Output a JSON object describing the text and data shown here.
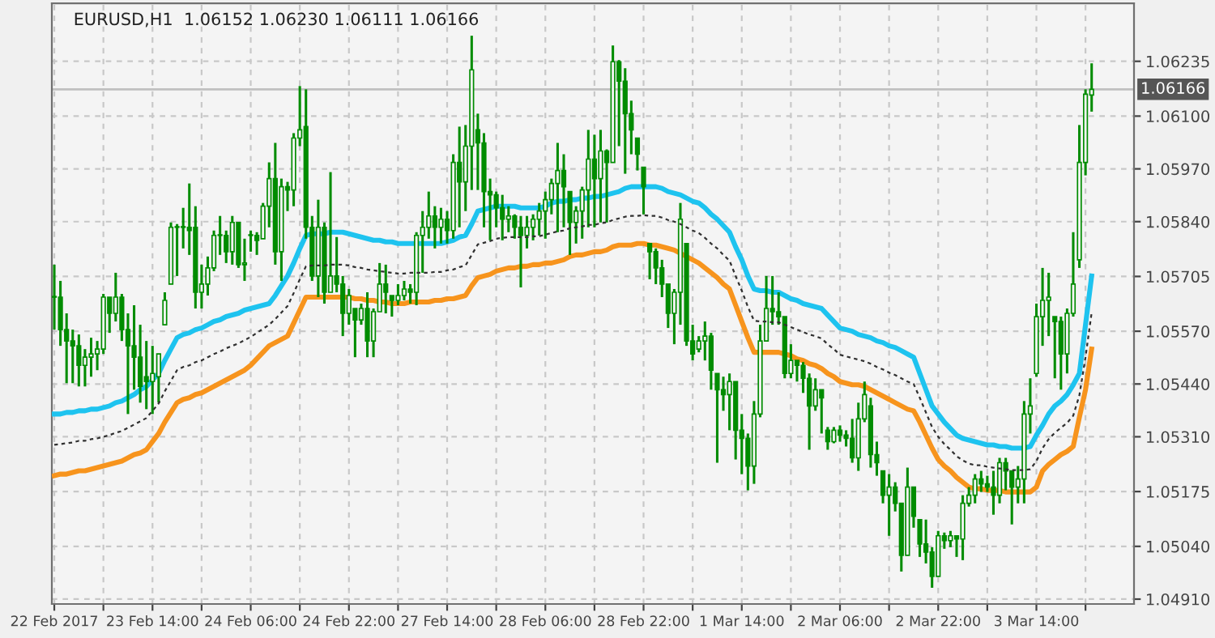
{
  "chart_data": {
    "type": "candlestick",
    "title": "EURUSD,H1  1.06152 1.06230 1.06111 1.06166",
    "categories": [
      "22 Feb 2017",
      null,
      null,
      null,
      null,
      null,
      null,
      null,
      null,
      null,
      null,
      null,
      null,
      null,
      null,
      null,
      "23 Feb 14:00",
      null,
      null,
      null,
      null,
      null,
      null,
      null,
      null,
      null,
      null,
      null,
      null,
      null,
      null,
      null,
      "24 Feb 06:00",
      null,
      null,
      null,
      null,
      null,
      null,
      null,
      null,
      null,
      null,
      null,
      null,
      null,
      null,
      null,
      "24 Feb 22:00",
      null,
      null,
      null,
      null,
      null,
      null,
      null,
      null,
      null,
      null,
      null,
      null,
      null,
      null,
      null,
      "27 Feb 14:00",
      null,
      null,
      null,
      null,
      null,
      null,
      null,
      null,
      null,
      null,
      null,
      null,
      null,
      null,
      null,
      "28 Feb 06:00",
      null,
      null,
      null,
      null,
      null,
      null,
      null,
      null,
      null,
      null,
      null,
      null,
      null,
      null,
      null,
      "28 Feb 22:00",
      null,
      null,
      null,
      null,
      null,
      null,
      null,
      null,
      null,
      null,
      null,
      null,
      null,
      null,
      null,
      "1 Mar 14:00",
      null,
      null,
      null,
      null,
      null,
      null,
      null,
      null,
      null,
      null,
      null,
      null,
      null,
      null,
      null,
      "2 Mar 06:00",
      null,
      null,
      null,
      null,
      null,
      null,
      null,
      null,
      null,
      null,
      null,
      null,
      null,
      null,
      null,
      "2 Mar 22:00",
      null,
      null,
      null,
      null,
      null,
      null,
      null,
      null,
      null,
      null,
      null,
      null,
      null,
      null,
      null,
      "3 Mar 14:00",
      null,
      null,
      null,
      null,
      null,
      null,
      null,
      null,
      null
    ],
    "color": "#008c00",
    "ohlc": [
      [
        1.05654,
        1.05734,
        1.05574,
        1.05654
      ],
      [
        1.05654,
        1.05694,
        1.05534,
        1.05574
      ],
      [
        1.05574,
        1.05614,
        1.05442,
        1.05546
      ],
      [
        1.05546,
        1.05574,
        1.05442,
        1.05534
      ],
      [
        1.05534,
        1.05562,
        1.05434,
        1.05486
      ],
      [
        1.05486,
        1.05526,
        1.05434,
        1.05506
      ],
      [
        1.05506,
        1.05554,
        1.05458,
        1.05514
      ],
      [
        1.05514,
        1.05546,
        1.05474,
        1.05526
      ],
      [
        1.05526,
        1.05662,
        1.05514,
        1.05654
      ],
      [
        1.05654,
        1.05654,
        1.05566,
        1.05614
      ],
      [
        1.05614,
        1.05714,
        1.05594,
        1.05654
      ],
      [
        1.05654,
        1.05662,
        1.05546,
        1.05574
      ],
      [
        1.05574,
        1.05614,
        1.05366,
        1.05534
      ],
      [
        1.05534,
        1.05634,
        1.05426,
        1.05506
      ],
      [
        1.05506,
        1.05586,
        1.05394,
        1.05434
      ],
      [
        1.05458,
        1.05546,
        1.05378,
        1.05446
      ],
      [
        1.05446,
        1.05534,
        1.05366,
        1.05466
      ],
      [
        1.05458,
        1.05514,
        1.05394,
        1.05514
      ],
      [
        1.05586,
        1.05666,
        1.05586,
        1.05646
      ],
      [
        1.05686,
        1.05838,
        1.05686,
        1.05826
      ],
      [
        1.05826,
        1.05834,
        1.05706,
        1.05826
      ],
      [
        1.05826,
        1.05874,
        1.05774,
        1.05826
      ],
      [
        1.05826,
        1.05934,
        1.05758,
        1.05818
      ],
      [
        1.05826,
        1.05878,
        1.05626,
        1.05666
      ],
      [
        1.05666,
        1.05734,
        1.05626,
        1.05686
      ],
      [
        1.05686,
        1.05754,
        1.05658,
        1.05726
      ],
      [
        1.05726,
        1.05818,
        1.05718,
        1.05806
      ],
      [
        1.05806,
        1.05854,
        1.05758,
        1.05806
      ],
      [
        1.05806,
        1.05818,
        1.05738,
        1.05766
      ],
      [
        1.05766,
        1.05854,
        1.05734,
        1.05838
      ],
      [
        1.05838,
        1.05838,
        1.05726,
        1.05734
      ],
      [
        1.05734,
        1.05798,
        1.05694,
        1.05738
      ],
      [
        1.05806,
        1.05818,
        1.05766,
        1.05806
      ],
      [
        1.05806,
        1.05814,
        1.05758,
        1.05794
      ],
      [
        1.05798,
        1.05886,
        1.05798,
        1.05878
      ],
      [
        1.05878,
        1.05986,
        1.05826,
        1.05946
      ],
      [
        1.05946,
        1.06034,
        1.05734,
        1.05766
      ],
      [
        1.05766,
        1.05946,
        1.05694,
        1.05926
      ],
      [
        1.05926,
        1.05938,
        1.05866,
        1.05918
      ],
      [
        1.05918,
        1.06058,
        1.05878,
        1.06046
      ],
      [
        1.06046,
        1.06174,
        1.06026,
        1.06066
      ],
      [
        1.06074,
        1.06166,
        1.05798,
        1.05826
      ],
      [
        1.05826,
        1.05854,
        1.05694,
        1.05706
      ],
      [
        1.05706,
        1.05894,
        1.05654,
        1.05826
      ],
      [
        1.05826,
        1.05838,
        1.05638,
        1.05666
      ],
      [
        1.05666,
        1.05962,
        1.05666,
        1.05706
      ],
      [
        1.05706,
        1.05802,
        1.05666,
        1.05686
      ],
      [
        1.05686,
        1.05706,
        1.05558,
        1.05614
      ],
      [
        1.05614,
        1.05674,
        1.05586,
        1.05658
      ],
      [
        1.05626,
        1.05626,
        1.05506,
        1.05598
      ],
      [
        1.05598,
        1.05638,
        1.05586,
        1.05626
      ],
      [
        1.05626,
        1.05666,
        1.05506,
        1.05546
      ],
      [
        1.05546,
        1.05626,
        1.05506,
        1.05618
      ],
      [
        1.05618,
        1.05738,
        1.05618,
        1.05686
      ],
      [
        1.05686,
        1.05734,
        1.05614,
        1.05666
      ],
      [
        1.05658,
        1.05658,
        1.05606,
        1.05646
      ],
      [
        1.05646,
        1.05686,
        1.05634,
        1.05658
      ],
      [
        1.05658,
        1.05694,
        1.05646,
        1.05674
      ],
      [
        1.05674,
        1.05686,
        1.05638,
        1.05666
      ],
      [
        1.05666,
        1.05814,
        1.05634,
        1.05806
      ],
      [
        1.05806,
        1.05866,
        1.05714,
        1.05826
      ],
      [
        1.05826,
        1.05914,
        1.05798,
        1.05854
      ],
      [
        1.05854,
        1.05878,
        1.05774,
        1.05826
      ],
      [
        1.05826,
        1.05874,
        1.05786,
        1.05846
      ],
      [
        1.05846,
        1.05866,
        1.05786,
        1.05818
      ],
      [
        1.05818,
        1.06006,
        1.05798,
        1.05986
      ],
      [
        1.05986,
        1.06074,
        1.05826,
        1.05938
      ],
      [
        1.05938,
        1.06078,
        1.05866,
        1.06026
      ],
      [
        1.06026,
        1.06298,
        1.05918,
        1.06214
      ],
      [
        1.06066,
        1.06106,
        1.05918,
        1.06034
      ],
      [
        1.06034,
        1.06058,
        1.05826,
        1.05914
      ],
      [
        1.05914,
        1.05946,
        1.05794,
        1.05906
      ],
      [
        1.05906,
        1.05914,
        1.05826,
        1.05874
      ],
      [
        1.05874,
        1.05906,
        1.05794,
        1.05846
      ],
      [
        1.05846,
        1.05878,
        1.05814,
        1.05854
      ],
      [
        1.05854,
        1.05858,
        1.05798,
        1.05826
      ],
      [
        1.05826,
        1.05854,
        1.05678,
        1.05806
      ],
      [
        1.05806,
        1.05854,
        1.05774,
        1.05826
      ],
      [
        1.05826,
        1.05858,
        1.05794,
        1.05846
      ],
      [
        1.05846,
        1.05886,
        1.05806,
        1.05866
      ],
      [
        1.05866,
        1.05914,
        1.05798,
        1.05894
      ],
      [
        1.05894,
        1.05946,
        1.05858,
        1.05934
      ],
      [
        1.05934,
        1.06034,
        1.05814,
        1.05966
      ],
      [
        1.05966,
        1.06006,
        1.05826,
        1.05926
      ],
      [
        1.05914,
        1.05914,
        1.05758,
        1.05838
      ],
      [
        1.05838,
        1.05878,
        1.05786,
        1.05866
      ],
      [
        1.05866,
        1.05926,
        1.05798,
        1.05918
      ],
      [
        1.05918,
        1.06066,
        1.05826,
        1.05994
      ],
      [
        1.05994,
        1.06054,
        1.05826,
        1.05946
      ],
      [
        1.05946,
        1.06066,
        1.05838,
        1.06014
      ],
      [
        1.06014,
        1.06018,
        1.05838,
        1.05986
      ],
      [
        1.05986,
        1.06274,
        1.05986,
        1.06234
      ],
      [
        1.06234,
        1.06238,
        1.06026,
        1.06186
      ],
      [
        1.06186,
        1.06218,
        1.05958,
        1.06106
      ],
      [
        1.06106,
        1.06138,
        1.06006,
        1.06066
      ],
      [
        1.06046,
        1.06046,
        1.05966,
        1.06006
      ],
      [
        1.05974,
        1.05974,
        1.05858,
        1.05926
      ],
      [
        1.05786,
        1.05786,
        1.05698,
        1.05766
      ],
      [
        1.05766,
        1.05774,
        1.05686,
        1.05726
      ],
      [
        1.05726,
        1.05746,
        1.05654,
        1.05686
      ],
      [
        1.05686,
        1.05686,
        1.05578,
        1.05614
      ],
      [
        1.05614,
        1.05674,
        1.05538,
        1.05666
      ],
      [
        1.05666,
        1.05886,
        1.05586,
        1.05846
      ],
      [
        1.05786,
        1.05786,
        1.05534,
        1.05546
      ],
      [
        1.05546,
        1.05586,
        1.05498,
        1.05514
      ],
      [
        1.05526,
        1.05558,
        1.05518,
        1.05546
      ],
      [
        1.05546,
        1.05594,
        1.05498,
        1.05558
      ],
      [
        1.05558,
        1.05566,
        1.05426,
        1.05474
      ],
      [
        1.05466,
        1.05466,
        1.05246,
        1.05426
      ],
      [
        1.05426,
        1.05458,
        1.05374,
        1.05414
      ],
      [
        1.05414,
        1.05466,
        1.05326,
        1.05446
      ],
      [
        1.05446,
        1.05446,
        1.05254,
        1.05326
      ],
      [
        1.05326,
        1.05366,
        1.05218,
        1.05306
      ],
      [
        1.05306,
        1.05318,
        1.05178,
        1.05238
      ],
      [
        1.05238,
        1.05398,
        1.05194,
        1.05366
      ],
      [
        1.05366,
        1.05586,
        1.05358,
        1.05546
      ],
      [
        1.05546,
        1.05706,
        1.05546,
        1.05626
      ],
      [
        1.05626,
        1.05706,
        1.05586,
        1.05618
      ],
      [
        1.05618,
        1.05666,
        1.05586,
        1.05606
      ],
      [
        1.05606,
        1.05606,
        1.05454,
        1.05466
      ],
      [
        1.05466,
        1.05538,
        1.05454,
        1.05498
      ],
      [
        1.05498,
        1.05498,
        1.05446,
        1.05486
      ],
      [
        1.05486,
        1.05494,
        1.05418,
        1.05454
      ],
      [
        1.05454,
        1.05466,
        1.05278,
        1.05386
      ],
      [
        1.05386,
        1.05454,
        1.05374,
        1.05426
      ],
      [
        1.05426,
        1.05426,
        1.05318,
        1.05406
      ],
      [
        1.05326,
        1.05334,
        1.05278,
        1.05298
      ],
      [
        1.05298,
        1.05334,
        1.05294,
        1.05326
      ],
      [
        1.05326,
        1.05338,
        1.05298,
        1.05314
      ],
      [
        1.05314,
        1.05326,
        1.05286,
        1.05306
      ],
      [
        1.05306,
        1.05354,
        1.05246,
        1.05258
      ],
      [
        1.05258,
        1.05394,
        1.05226,
        1.05354
      ],
      [
        1.05354,
        1.05446,
        1.05346,
        1.05414
      ],
      [
        1.05386,
        1.05406,
        1.05234,
        1.05266
      ],
      [
        1.05266,
        1.05298,
        1.05214,
        1.05246
      ],
      [
        1.05226,
        1.05226,
        1.05146,
        1.05166
      ],
      [
        1.05166,
        1.05218,
        1.05066,
        1.05186
      ],
      [
        1.05186,
        1.05198,
        1.05126,
        1.05146
      ],
      [
        1.05146,
        1.05146,
        1.04978,
        1.05018
      ],
      [
        1.05018,
        1.05234,
        1.05018,
        1.05186
      ],
      [
        1.05186,
        1.05186,
        1.05086,
        1.05114
      ],
      [
        1.05106,
        1.05106,
        1.05014,
        1.05046
      ],
      [
        1.05046,
        1.05106,
        1.04998,
        1.05026
      ],
      [
        1.05026,
        1.05038,
        1.04938,
        1.04966
      ],
      [
        1.04966,
        1.05078,
        1.04966,
        1.05066
      ],
      [
        1.05066,
        1.05074,
        1.05034,
        1.05054
      ],
      [
        1.05054,
        1.05078,
        1.05038,
        1.05066
      ],
      [
        1.05066,
        1.05066,
        1.05014,
        1.05058
      ],
      [
        1.05058,
        1.05166,
        1.05006,
        1.05146
      ],
      [
        1.05146,
        1.05186,
        1.05138,
        1.05166
      ],
      [
        1.05166,
        1.05218,
        1.05146,
        1.05206
      ],
      [
        1.05206,
        1.05226,
        1.05174,
        1.05194
      ],
      [
        1.05194,
        1.05214,
        1.05174,
        1.05186
      ],
      [
        1.05186,
        1.05226,
        1.05118,
        1.05166
      ],
      [
        1.05166,
        1.05258,
        1.05146,
        1.05246
      ],
      [
        1.05246,
        1.05258,
        1.05178,
        1.05226
      ],
      [
        1.05226,
        1.05226,
        1.05094,
        1.05186
      ],
      [
        1.05186,
        1.05238,
        1.05146,
        1.05206
      ],
      [
        1.05206,
        1.05398,
        1.05146,
        1.05366
      ],
      [
        1.05366,
        1.05454,
        1.05318,
        1.05386
      ],
      [
        1.05466,
        1.05638,
        1.05458,
        1.05606
      ],
      [
        1.05606,
        1.05726,
        1.05534,
        1.05646
      ],
      [
        1.05646,
        1.05714,
        1.05558,
        1.05654
      ],
      [
        1.05606,
        1.05606,
        1.05454,
        1.05594
      ],
      [
        1.05594,
        1.05606,
        1.05426,
        1.05514
      ],
      [
        1.05514,
        1.05626,
        1.05466,
        1.05614
      ],
      [
        1.05614,
        1.05814,
        1.05606,
        1.05686
      ],
      [
        1.05746,
        1.06078,
        1.05726,
        1.05986
      ],
      [
        1.05986,
        1.06166,
        1.05954,
        1.06154
      ],
      [
        1.06152,
        1.0623,
        1.06111,
        1.06166
      ]
    ],
    "series": [
      {
        "type": "line",
        "color": "#1ec3ef",
        "line_style": "solid",
        "values": [
          1.05366,
          1.05366,
          1.0537,
          1.0537,
          1.05374,
          1.05374,
          1.05378,
          1.05378,
          1.05382,
          1.05386,
          1.05394,
          1.05398,
          1.05406,
          1.05414,
          1.05426,
          1.05434,
          1.0545,
          1.05466,
          1.05498,
          1.05526,
          1.05554,
          1.05562,
          1.05566,
          1.05574,
          1.05578,
          1.05586,
          1.05594,
          1.05598,
          1.05606,
          1.0561,
          1.05614,
          1.05622,
          1.05626,
          1.0563,
          1.05634,
          1.05638,
          1.05658,
          1.05682,
          1.05706,
          1.05738,
          1.05774,
          1.05806,
          1.0581,
          1.0581,
          1.0581,
          1.05814,
          1.05814,
          1.05814,
          1.0581,
          1.05806,
          1.05802,
          1.05798,
          1.05794,
          1.05794,
          1.0579,
          1.0579,
          1.05786,
          1.05786,
          1.05786,
          1.05786,
          1.05786,
          1.05786,
          1.05786,
          1.05786,
          1.0579,
          1.05794,
          1.05802,
          1.05806,
          1.05834,
          1.05866,
          1.0587,
          1.05874,
          1.05878,
          1.05878,
          1.05878,
          1.05878,
          1.05874,
          1.05874,
          1.05874,
          1.05874,
          1.05878,
          1.05886,
          1.0589,
          1.0589,
          1.05894,
          1.05894,
          1.05898,
          1.05898,
          1.05902,
          1.05902,
          1.05906,
          1.0591,
          1.05914,
          1.05922,
          1.05926,
          1.05926,
          1.05926,
          1.05926,
          1.05926,
          1.05922,
          1.05914,
          1.0591,
          1.05906,
          1.05898,
          1.0589,
          1.05886,
          1.05874,
          1.05858,
          1.05846,
          1.0583,
          1.05814,
          1.05778,
          1.05746,
          1.05706,
          1.05674,
          1.0567,
          1.0567,
          1.05666,
          1.05666,
          1.05658,
          1.0565,
          1.05646,
          1.05638,
          1.05634,
          1.0563,
          1.05626,
          1.0561,
          1.05594,
          1.05578,
          1.05574,
          1.0557,
          1.05562,
          1.05558,
          1.05554,
          1.05546,
          1.05542,
          1.05534,
          1.0553,
          1.05522,
          1.05514,
          1.05506,
          1.05466,
          1.05426,
          1.05386,
          1.05366,
          1.05346,
          1.0533,
          1.05314,
          1.05306,
          1.05302,
          1.05298,
          1.05294,
          1.0529,
          1.0529,
          1.05286,
          1.05286,
          1.05282,
          1.05282,
          1.05282,
          1.05286,
          1.05314,
          1.05338,
          1.05366,
          1.05386,
          1.05398,
          1.05414,
          1.05438,
          1.05466,
          1.05586,
          1.05706
        ]
      },
      {
        "type": "line",
        "color": "#f7941d",
        "line_style": "solid",
        "values": [
          1.05214,
          1.05218,
          1.05218,
          1.05222,
          1.05226,
          1.05226,
          1.0523,
          1.05234,
          1.05238,
          1.05242,
          1.05246,
          1.0525,
          1.05258,
          1.05266,
          1.0527,
          1.05278,
          1.05298,
          1.05318,
          1.05346,
          1.0537,
          1.05394,
          1.05402,
          1.05406,
          1.05414,
          1.05418,
          1.05426,
          1.05434,
          1.05442,
          1.0545,
          1.05458,
          1.05466,
          1.05474,
          1.05486,
          1.05502,
          1.05518,
          1.05534,
          1.05542,
          1.0555,
          1.05558,
          1.0559,
          1.05622,
          1.05654,
          1.05654,
          1.05654,
          1.05654,
          1.05654,
          1.05654,
          1.05654,
          1.05654,
          1.0565,
          1.0565,
          1.05646,
          1.05646,
          1.05642,
          1.05642,
          1.05638,
          1.05638,
          1.05638,
          1.05642,
          1.05642,
          1.05642,
          1.05642,
          1.05646,
          1.05646,
          1.0565,
          1.0565,
          1.05654,
          1.05658,
          1.05682,
          1.05702,
          1.05706,
          1.0571,
          1.05718,
          1.05722,
          1.05726,
          1.05726,
          1.0573,
          1.0573,
          1.05734,
          1.05734,
          1.05738,
          1.05738,
          1.05742,
          1.05746,
          1.05754,
          1.05758,
          1.05758,
          1.05762,
          1.05766,
          1.05766,
          1.0577,
          1.05778,
          1.05782,
          1.05782,
          1.05782,
          1.05786,
          1.05786,
          1.05782,
          1.05782,
          1.05778,
          1.05774,
          1.0577,
          1.05762,
          1.05754,
          1.05746,
          1.05738,
          1.05726,
          1.05714,
          1.05702,
          1.05686,
          1.05674,
          1.05634,
          1.05594,
          1.05554,
          1.05518,
          1.05518,
          1.05518,
          1.05518,
          1.05518,
          1.05514,
          1.0551,
          1.05502,
          1.05498,
          1.0549,
          1.05486,
          1.05478,
          1.05466,
          1.05458,
          1.05446,
          1.05442,
          1.05438,
          1.05438,
          1.05434,
          1.05426,
          1.05418,
          1.0541,
          1.05402,
          1.05394,
          1.05386,
          1.05378,
          1.05374,
          1.05346,
          1.05314,
          1.05282,
          1.05254,
          1.05238,
          1.05226,
          1.0521,
          1.05198,
          1.05186,
          1.05182,
          1.05182,
          1.05178,
          1.05178,
          1.05178,
          1.05174,
          1.05174,
          1.05174,
          1.05174,
          1.05174,
          1.05186,
          1.05226,
          1.05242,
          1.05254,
          1.05266,
          1.05274,
          1.05286,
          1.05358,
          1.05426,
          1.05526
        ]
      },
      {
        "type": "line",
        "color": "#303030",
        "line_style": "dotted",
        "values": [
          1.0529,
          1.05292,
          1.05294,
          1.05296,
          1.053,
          1.053,
          1.05304,
          1.05306,
          1.0531,
          1.05314,
          1.0532,
          1.05324,
          1.05332,
          1.0534,
          1.05348,
          1.05356,
          1.05374,
          1.05392,
          1.05422,
          1.05448,
          1.05474,
          1.05482,
          1.05486,
          1.05494,
          1.05498,
          1.05506,
          1.05514,
          1.0552,
          1.05528,
          1.05534,
          1.0554,
          1.05548,
          1.05556,
          1.05566,
          1.05576,
          1.05586,
          1.056,
          1.05616,
          1.05632,
          1.05664,
          1.05698,
          1.0573,
          1.05732,
          1.05732,
          1.05732,
          1.05734,
          1.05734,
          1.05734,
          1.05732,
          1.05728,
          1.05726,
          1.05722,
          1.0572,
          1.05718,
          1.05716,
          1.05714,
          1.05712,
          1.05712,
          1.05714,
          1.05714,
          1.05714,
          1.05714,
          1.05716,
          1.05716,
          1.0572,
          1.05722,
          1.05728,
          1.05732,
          1.05758,
          1.05784,
          1.05788,
          1.05792,
          1.05798,
          1.058,
          1.05802,
          1.05802,
          1.05802,
          1.05802,
          1.05804,
          1.05804,
          1.05808,
          1.05812,
          1.05816,
          1.05818,
          1.05824,
          1.05826,
          1.05828,
          1.05832,
          1.05832,
          1.05836,
          1.05838,
          1.05844,
          1.05848,
          1.05852,
          1.05854,
          1.05854,
          1.05856,
          1.05854,
          1.05854,
          1.0585,
          1.05844,
          1.0584,
          1.05834,
          1.05826,
          1.05818,
          1.05812,
          1.058,
          1.05786,
          1.05774,
          1.05758,
          1.05744,
          1.05706,
          1.0567,
          1.0563,
          1.05596,
          1.05594,
          1.05594,
          1.05592,
          1.05592,
          1.05586,
          1.0558,
          1.05574,
          1.05568,
          1.05562,
          1.05558,
          1.05552,
          1.05538,
          1.05526,
          1.05512,
          1.05508,
          1.05504,
          1.055,
          1.05496,
          1.0549,
          1.05482,
          1.05476,
          1.05468,
          1.05462,
          1.05454,
          1.05446,
          1.0544,
          1.05406,
          1.0537,
          1.05334,
          1.0531,
          1.05292,
          1.05278,
          1.05262,
          1.05252,
          1.05244,
          1.0524,
          1.0524,
          1.05236,
          1.05234,
          1.05232,
          1.0523,
          1.05228,
          1.05228,
          1.05228,
          1.0523,
          1.0525,
          1.05282,
          1.05304,
          1.0532,
          1.05332,
          1.05344,
          1.05362,
          1.05412,
          1.05506,
          1.05616
        ]
      }
    ],
    "ylim": [
      1.04898,
      1.06378
    ],
    "yticks": [
      1.06235,
      {
        "value": 1.061,
        "label": "1.06100"
      },
      {
        "value": 1.0597,
        "label": "1.05970"
      },
      {
        "value": 1.0584,
        "label": "1.05840"
      },
      1.05705,
      {
        "value": 1.0557,
        "label": "1.05570"
      },
      {
        "value": 1.0544,
        "label": "1.05440"
      },
      {
        "value": 1.0531,
        "label": "1.05310"
      },
      1.05175,
      {
        "value": 1.0504,
        "label": "1.05040"
      },
      {
        "value": 1.0491,
        "label": "1.04910"
      }
    ],
    "ref_lines": [
      {
        "axis": "y",
        "value": 1.06166,
        "label": "1.06166",
        "color": "#c0c0c0"
      }
    ],
    "grid": true
  }
}
